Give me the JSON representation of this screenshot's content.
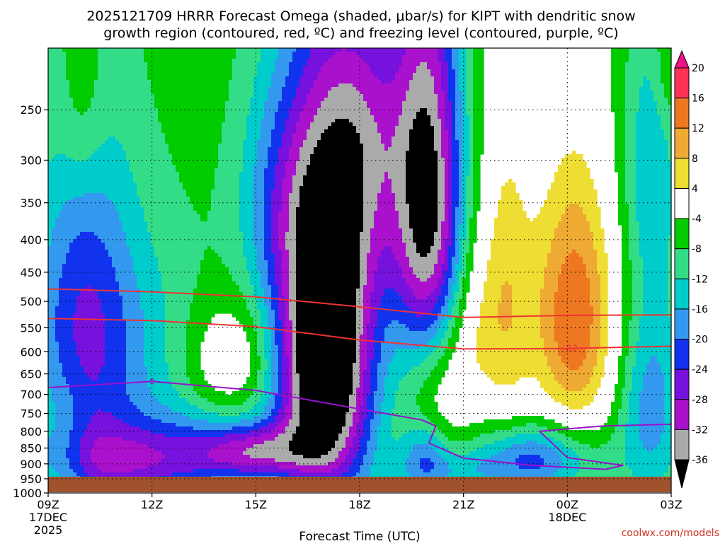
{
  "chart_data": {
    "type": "heatmap",
    "title_line1": "2025121709 HRRR Forecast Omega (shaded, μbar/s) for KIPT with dendritic snow",
    "title_line2": "growth region (contoured, red, ºC) and freezing level (contoured, purple, ºC)",
    "xlabel": "Forecast Time (UTC)",
    "credit": "coolwx.com/models",
    "x_ticks": [
      {
        "hour": 0,
        "label": "09Z",
        "sub1": "17DEC",
        "sub2": "2025"
      },
      {
        "hour": 3,
        "label": "12Z",
        "sub1": "",
        "sub2": ""
      },
      {
        "hour": 6,
        "label": "15Z",
        "sub1": "",
        "sub2": ""
      },
      {
        "hour": 9,
        "label": "18Z",
        "sub1": "",
        "sub2": ""
      },
      {
        "hour": 12,
        "label": "21Z",
        "sub1": "",
        "sub2": ""
      },
      {
        "hour": 15,
        "label": "00Z",
        "sub1": "18DEC",
        "sub2": ""
      },
      {
        "hour": 18,
        "label": "03Z",
        "sub1": "",
        "sub2": ""
      }
    ],
    "xlim": [
      0,
      18
    ],
    "ylim": [
      1000,
      200
    ],
    "y_scale": "log-pressure",
    "y_ticks": [
      "250",
      "300",
      "350",
      "400",
      "450",
      "500",
      "550",
      "600",
      "650",
      "700",
      "750",
      "800",
      "850",
      "900",
      "950",
      "1000"
    ],
    "colorbar": {
      "labels": [
        "20",
        "16",
        "12",
        "8",
        "4",
        "-4",
        "-8",
        "-12",
        "-16",
        "-20",
        "-24",
        "-28",
        "-32",
        "-36"
      ],
      "boundaries": [
        24,
        20,
        16,
        12,
        8,
        4,
        -4,
        -8,
        -12,
        -16,
        -20,
        -24,
        -28,
        -32,
        -36,
        -40
      ],
      "colors": [
        "#ee1188",
        "#ff3355",
        "#ee7722",
        "#eeaa33",
        "#eedd33",
        "#ffffff",
        "#00cc00",
        "#33dd88",
        "#00cccc",
        "#3399ee",
        "#1133ee",
        "#7711dd",
        "#aa11cc",
        "#aaaaaa",
        "#000000"
      ]
    },
    "omega_features": [
      {
        "hour": 1.0,
        "p": 240,
        "sx": 0.5,
        "sp": 70,
        "amp": 6
      },
      {
        "hour": 0.5,
        "p": 880,
        "sx": 0.5,
        "sp": 150,
        "amp": 5
      },
      {
        "hour": 1.0,
        "p": 560,
        "sx": 1.1,
        "sp": 240,
        "amp": -18
      },
      {
        "hour": 1.6,
        "p": 900,
        "sx": 1.6,
        "sp": 90,
        "amp": -14
      },
      {
        "hour": 4.0,
        "p": 880,
        "sx": 1.6,
        "sp": 100,
        "amp": -12
      },
      {
        "hour": 3.1,
        "p": 600,
        "sx": 1.4,
        "sp": 200,
        "amp": -6
      },
      {
        "hour": 5.2,
        "p": 620,
        "sx": 0.9,
        "sp": 90,
        "amp": 9
      },
      {
        "hour": 6.6,
        "p": 340,
        "sx": 0.9,
        "sp": 110,
        "amp": -9
      },
      {
        "hour": 6.0,
        "p": 860,
        "sx": 1.1,
        "sp": 60,
        "amp": -18
      },
      {
        "hour": 8.0,
        "p": 620,
        "sx": 1.0,
        "sp": 260,
        "amp": -42
      },
      {
        "hour": 9.0,
        "p": 330,
        "sx": 1.3,
        "sp": 130,
        "amp": -13
      },
      {
        "hour": 9.3,
        "p": 250,
        "sx": 0.9,
        "sp": 80,
        "amp": -8
      },
      {
        "hour": 11.0,
        "p": 360,
        "sx": 0.7,
        "sp": 190,
        "amp": -30
      },
      {
        "hour": 10.9,
        "p": 870,
        "sx": 0.5,
        "sp": 80,
        "amp": -12
      },
      {
        "hour": 11.4,
        "p": 680,
        "sx": 0.7,
        "sp": 140,
        "amp": 9
      },
      {
        "hour": 12.3,
        "p": 540,
        "sx": 0.5,
        "sp": 120,
        "amp": 6
      },
      {
        "hour": 13.2,
        "p": 490,
        "sx": 0.55,
        "sp": 230,
        "amp": 11
      },
      {
        "hour": 14.0,
        "p": 880,
        "sx": 1.3,
        "sp": 80,
        "amp": -17
      },
      {
        "hour": 11.6,
        "p": 930,
        "sx": 1.3,
        "sp": 50,
        "amp": -6
      },
      {
        "hour": 15.2,
        "p": 530,
        "sx": 0.9,
        "sp": 190,
        "amp": 21
      },
      {
        "hour": 17.4,
        "p": 300,
        "sx": 0.6,
        "sp": 110,
        "amp": -9
      },
      {
        "hour": 17.4,
        "p": 720,
        "sx": 0.7,
        "sp": 200,
        "amp": -13
      },
      {
        "hour": 17.9,
        "p": 210,
        "sx": 0.3,
        "sp": 40,
        "amp": 5
      },
      {
        "hour": 7.5,
        "p": 970,
        "sx": 0.5,
        "sp": 20,
        "amp": 9
      }
    ],
    "red_contours": [
      {
        "label": "",
        "points": [
          [
            0,
            478
          ],
          [
            3,
            483
          ],
          [
            6,
            492
          ],
          [
            9,
            510
          ],
          [
            12,
            530
          ],
          [
            15,
            526
          ],
          [
            18,
            525
          ]
        ]
      },
      {
        "label": "-12",
        "label_hour": 15.1,
        "points": [
          [
            0,
            532
          ],
          [
            3,
            536
          ],
          [
            6,
            548
          ],
          [
            9,
            575
          ],
          [
            12,
            594
          ],
          [
            15,
            593
          ],
          [
            18,
            588
          ]
        ]
      }
    ],
    "purple_contours": [
      {
        "label": "0",
        "label_hour": 3.0,
        "points": [
          [
            0,
            683
          ],
          [
            3,
            668
          ],
          [
            6,
            690
          ],
          [
            8.5,
            730
          ],
          [
            10.8,
            768
          ],
          [
            11.2,
            785
          ],
          [
            11.0,
            835
          ],
          [
            12,
            882
          ],
          [
            14,
            905
          ],
          [
            16.1,
            918
          ],
          [
            16.6,
            905
          ],
          [
            15,
            880
          ],
          [
            14.2,
            800
          ],
          [
            16,
            785
          ],
          [
            18,
            780
          ]
        ]
      }
    ]
  }
}
